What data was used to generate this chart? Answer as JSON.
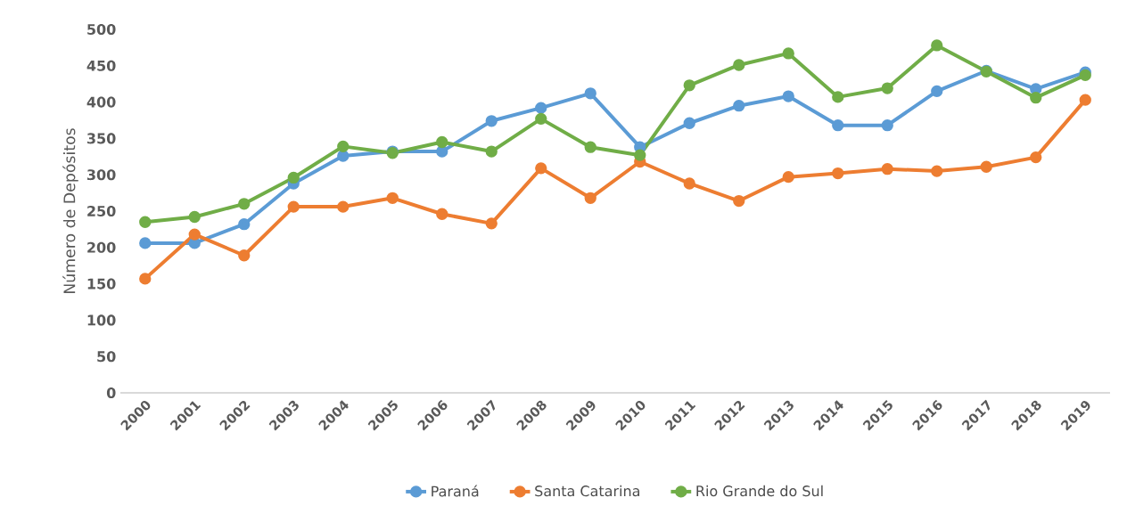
{
  "chart_data": {
    "type": "line",
    "ylabel": "Número de Depósitos",
    "categories": [
      "2000",
      "2001",
      "2002",
      "2003",
      "2004",
      "2005",
      "2006",
      "2007",
      "2008",
      "2009",
      "2010",
      "2011",
      "2012",
      "2013",
      "2014",
      "2015",
      "2016",
      "2017",
      "2018",
      "2019"
    ],
    "series": [
      {
        "name": "Paraná",
        "color": "#5b9bd5",
        "values": [
          206,
          206,
          232,
          288,
          326,
          332,
          332,
          374,
          392,
          412,
          338,
          371,
          395,
          408,
          368,
          368,
          415,
          443,
          418,
          441
        ]
      },
      {
        "name": "Santa Catarina",
        "color": "#ed7d31",
        "values": [
          157,
          218,
          189,
          256,
          256,
          268,
          246,
          233,
          309,
          268,
          318,
          288,
          264,
          297,
          302,
          308,
          305,
          311,
          324,
          403
        ]
      },
      {
        "name": "Rio Grande do Sul",
        "color": "#70ad47",
        "values": [
          235,
          242,
          260,
          296,
          339,
          330,
          345,
          332,
          377,
          338,
          327,
          423,
          451,
          467,
          407,
          419,
          478,
          442,
          406,
          437
        ]
      }
    ],
    "ylim": [
      0,
      500
    ],
    "yticks": [
      0,
      50,
      100,
      150,
      200,
      250,
      300,
      350,
      400,
      450,
      500
    ],
    "grid": false,
    "legend": "bottom",
    "marker": "circle",
    "line_style": "solid"
  }
}
